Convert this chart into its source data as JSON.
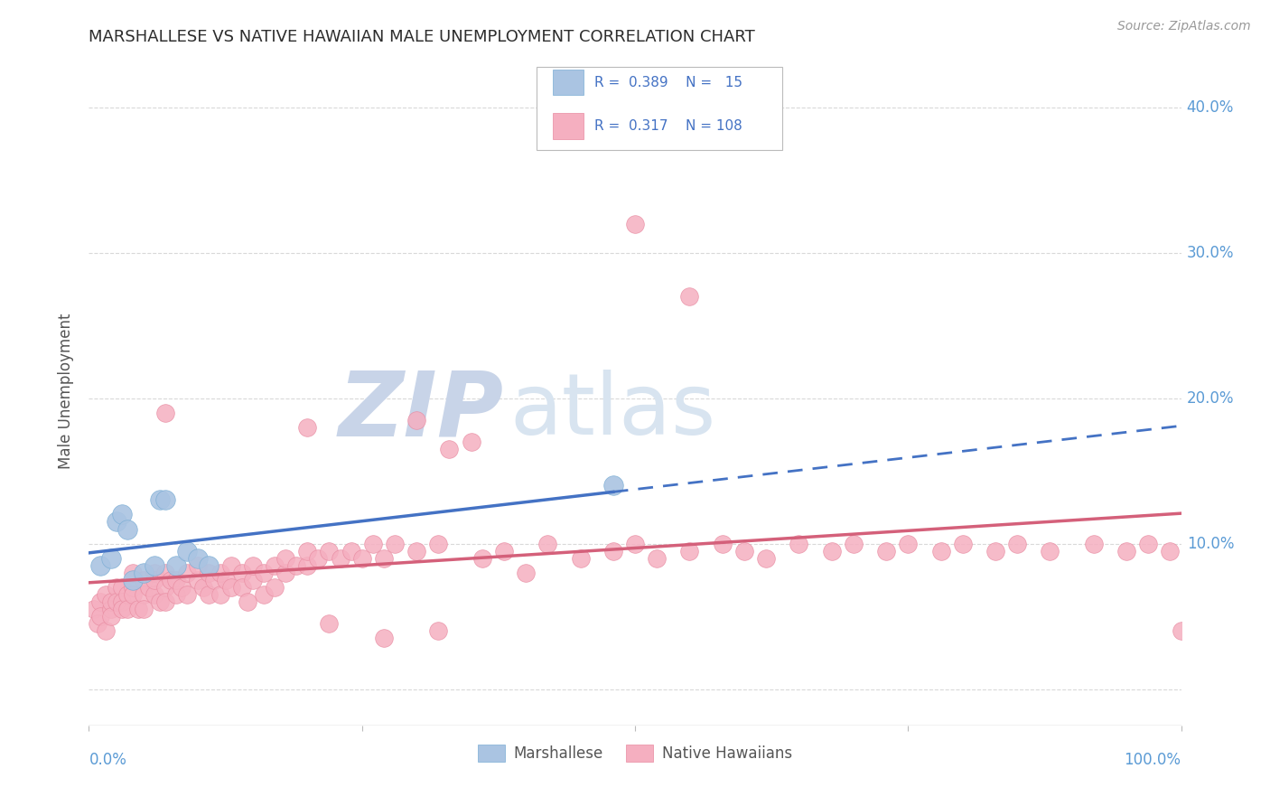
{
  "title": "MARSHALLESE VS NATIVE HAWAIIAN MALE UNEMPLOYMENT CORRELATION CHART",
  "source": "Source: ZipAtlas.com",
  "ylabel": "Male Unemployment",
  "ytick_labels": [
    "",
    "10.0%",
    "20.0%",
    "30.0%",
    "40.0%"
  ],
  "ytick_values": [
    0.0,
    0.1,
    0.2,
    0.3,
    0.4
  ],
  "xlim": [
    0.0,
    1.0
  ],
  "ylim": [
    -0.025,
    0.435
  ],
  "color_marshallese_fill": "#aac4e2",
  "color_marshallese_edge": "#7aadd4",
  "color_native_hawaiian_fill": "#f5afc0",
  "color_native_hawaiian_edge": "#e88aa0",
  "color_line_blue": "#4472c4",
  "color_line_pink": "#d4607a",
  "color_axis_label": "#5b9bd5",
  "color_title": "#2d2d2d",
  "color_source": "#999999",
  "color_ylabel": "#555555",
  "color_watermark_zip": "#c8d4e8",
  "color_watermark_atlas": "#d8e4f0",
  "background_color": "#ffffff",
  "grid_color": "#d0d0d0",
  "marshallese_x": [
    0.01,
    0.02,
    0.025,
    0.03,
    0.035,
    0.04,
    0.05,
    0.06,
    0.065,
    0.07,
    0.08,
    0.09,
    0.1,
    0.11,
    0.48
  ],
  "marshallese_y": [
    0.085,
    0.09,
    0.115,
    0.12,
    0.11,
    0.075,
    0.08,
    0.085,
    0.13,
    0.13,
    0.085,
    0.095,
    0.09,
    0.085,
    0.14
  ],
  "native_hawaiian_x": [
    0.005,
    0.008,
    0.01,
    0.01,
    0.015,
    0.015,
    0.02,
    0.02,
    0.02,
    0.025,
    0.025,
    0.03,
    0.03,
    0.03,
    0.035,
    0.035,
    0.04,
    0.04,
    0.04,
    0.045,
    0.05,
    0.05,
    0.05,
    0.055,
    0.06,
    0.06,
    0.06,
    0.065,
    0.07,
    0.07,
    0.07,
    0.075,
    0.08,
    0.08,
    0.085,
    0.09,
    0.09,
    0.1,
    0.1,
    0.105,
    0.11,
    0.11,
    0.115,
    0.12,
    0.12,
    0.125,
    0.13,
    0.13,
    0.14,
    0.14,
    0.145,
    0.15,
    0.15,
    0.16,
    0.16,
    0.17,
    0.17,
    0.18,
    0.18,
    0.19,
    0.2,
    0.2,
    0.21,
    0.22,
    0.23,
    0.24,
    0.25,
    0.26,
    0.27,
    0.28,
    0.3,
    0.3,
    0.32,
    0.33,
    0.35,
    0.36,
    0.38,
    0.4,
    0.42,
    0.45,
    0.48,
    0.5,
    0.52,
    0.55,
    0.58,
    0.6,
    0.62,
    0.65,
    0.68,
    0.7,
    0.73,
    0.75,
    0.78,
    0.8,
    0.83,
    0.85,
    0.88,
    0.92,
    0.95,
    0.97,
    0.99,
    1.0,
    0.5,
    0.55,
    0.27,
    0.32,
    0.2,
    0.22,
    0.07
  ],
  "native_hawaiian_y": [
    0.055,
    0.045,
    0.06,
    0.05,
    0.065,
    0.04,
    0.055,
    0.06,
    0.05,
    0.07,
    0.06,
    0.07,
    0.06,
    0.055,
    0.065,
    0.055,
    0.07,
    0.08,
    0.065,
    0.055,
    0.075,
    0.065,
    0.055,
    0.07,
    0.08,
    0.065,
    0.075,
    0.06,
    0.08,
    0.07,
    0.06,
    0.075,
    0.065,
    0.075,
    0.07,
    0.08,
    0.065,
    0.075,
    0.085,
    0.07,
    0.08,
    0.065,
    0.075,
    0.08,
    0.065,
    0.075,
    0.085,
    0.07,
    0.08,
    0.07,
    0.06,
    0.075,
    0.085,
    0.08,
    0.065,
    0.085,
    0.07,
    0.08,
    0.09,
    0.085,
    0.085,
    0.095,
    0.09,
    0.095,
    0.09,
    0.095,
    0.09,
    0.1,
    0.09,
    0.1,
    0.095,
    0.185,
    0.1,
    0.165,
    0.17,
    0.09,
    0.095,
    0.08,
    0.1,
    0.09,
    0.095,
    0.1,
    0.09,
    0.095,
    0.1,
    0.095,
    0.09,
    0.1,
    0.095,
    0.1,
    0.095,
    0.1,
    0.095,
    0.1,
    0.095,
    0.1,
    0.095,
    0.1,
    0.095,
    0.1,
    0.095,
    0.04,
    0.32,
    0.27,
    0.035,
    0.04,
    0.18,
    0.045,
    0.19
  ]
}
